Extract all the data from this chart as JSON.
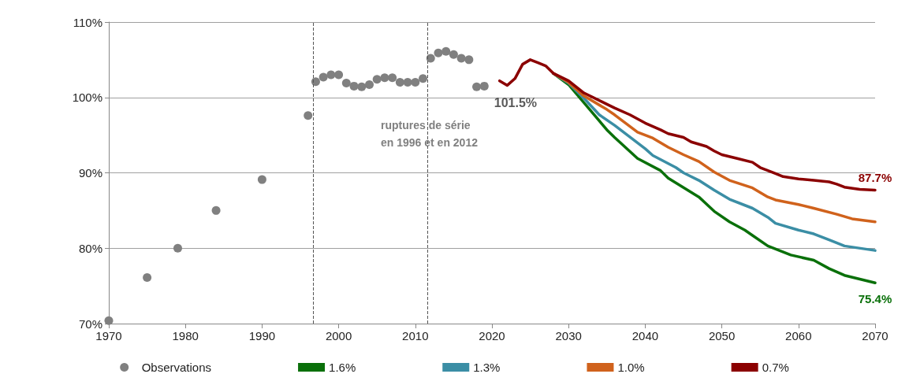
{
  "chart_data": {
    "type": "line",
    "xlim": [
      1970,
      2070
    ],
    "xticks": [
      1970,
      1980,
      1990,
      2000,
      2010,
      2020,
      2030,
      2040,
      2050,
      2060,
      2070
    ],
    "ylim": [
      70,
      110
    ],
    "yticks": [
      {
        "value": 70,
        "label": "70%"
      },
      {
        "value": 80,
        "label": "80%"
      },
      {
        "value": 90,
        "label": "90%"
      },
      {
        "value": 100,
        "label": "100%"
      },
      {
        "value": 110,
        "label": "110%"
      }
    ],
    "grid": "y",
    "legend": "bottom",
    "marker": "none",
    "line_style": "solid",
    "series": [
      {
        "name": "Observations",
        "type": "scatter",
        "marker": "circle",
        "color": "#808080",
        "x": [
          1970,
          1975,
          1979,
          1984,
          1990,
          1996,
          1997,
          1998,
          1999,
          2000,
          2001,
          2002,
          2003,
          2004,
          2005,
          2006,
          2007,
          2008,
          2009,
          2010,
          2011,
          2012,
          2013,
          2014,
          2015,
          2016,
          2017,
          2018,
          2019
        ],
        "values": [
          70.4,
          76.1,
          80.0,
          85.0,
          89.1,
          97.6,
          102.1,
          102.7,
          103.0,
          103.0,
          101.9,
          101.5,
          101.4,
          101.7,
          102.4,
          102.6,
          102.6,
          102.0,
          102.0,
          102.0,
          102.5,
          105.2,
          105.9,
          106.1,
          105.7,
          105.2,
          105.0,
          101.4,
          101.5
        ],
        "value_labels": [
          null,
          null,
          null,
          null,
          null,
          null,
          null,
          null,
          null,
          null,
          null,
          null,
          null,
          null,
          null,
          null,
          null,
          null,
          null,
          null,
          null,
          null,
          null,
          null,
          null,
          null,
          null,
          null,
          "101.5%"
        ]
      },
      {
        "name": "1.6%",
        "color": "#0a700a",
        "x": [
          2028,
          2030,
          2032,
          2035,
          2036,
          2039,
          2042,
          2043,
          2047,
          2049,
          2051,
          2053,
          2054,
          2056,
          2059,
          2062,
          2064,
          2066,
          2070
        ],
        "values": [
          103.2,
          101.7,
          99.3,
          95.7,
          94.7,
          91.9,
          90.3,
          89.3,
          86.8,
          84.9,
          83.5,
          82.4,
          81.7,
          80.3,
          79.1,
          78.4,
          77.3,
          76.4,
          75.4
        ],
        "value_labels": [
          null,
          null,
          null,
          null,
          null,
          null,
          null,
          null,
          null,
          null,
          null,
          null,
          null,
          null,
          null,
          null,
          null,
          null,
          "75.4%"
        ]
      },
      {
        "name": "1.3%",
        "color": "#3b8ea5",
        "x": [
          2028,
          2030,
          2032,
          2034,
          2036,
          2040,
          2041,
          2044,
          2045,
          2047,
          2049,
          2051,
          2054,
          2056,
          2057,
          2060,
          2062,
          2064,
          2066,
          2070
        ],
        "values": [
          103.2,
          101.9,
          99.9,
          97.7,
          96.3,
          93.2,
          92.3,
          90.7,
          90.0,
          89.0,
          87.7,
          86.5,
          85.3,
          84.1,
          83.3,
          82.4,
          81.9,
          81.1,
          80.3,
          79.7
        ]
      },
      {
        "name": "1.0%",
        "color": "#d0621c",
        "x": [
          2028,
          2030,
          2032,
          2035,
          2036,
          2039,
          2041,
          2043,
          2045,
          2047,
          2049,
          2051,
          2054,
          2056,
          2057,
          2060,
          2062,
          2065,
          2067,
          2070
        ],
        "values": [
          103.2,
          102.0,
          100.2,
          98.4,
          97.7,
          95.4,
          94.6,
          93.4,
          92.4,
          91.5,
          90.1,
          89.0,
          88.0,
          86.8,
          86.4,
          85.8,
          85.3,
          84.5,
          83.9,
          83.5
        ]
      },
      {
        "name": "0.7%",
        "color": "#8b0000",
        "x": [
          2021,
          2022,
          2023,
          2024,
          2025,
          2026,
          2027,
          2028,
          2030,
          2031,
          2032,
          2035,
          2036,
          2038,
          2040,
          2042,
          2043,
          2045,
          2046,
          2048,
          2049,
          2050,
          2052,
          2054,
          2055,
          2057,
          2058,
          2060,
          2062,
          2064,
          2065,
          2066,
          2068,
          2070
        ],
        "values": [
          102.2,
          101.6,
          102.5,
          104.4,
          105.0,
          104.6,
          104.2,
          103.2,
          102.2,
          101.4,
          100.6,
          99.1,
          98.6,
          97.7,
          96.6,
          95.7,
          95.2,
          94.7,
          94.1,
          93.5,
          92.9,
          92.4,
          91.9,
          91.4,
          90.7,
          89.9,
          89.5,
          89.2,
          89.0,
          88.8,
          88.5,
          88.1,
          87.8,
          87.7
        ],
        "value_labels": [
          null,
          null,
          null,
          null,
          null,
          null,
          null,
          null,
          null,
          null,
          null,
          null,
          null,
          null,
          null,
          null,
          null,
          null,
          null,
          null,
          null,
          null,
          null,
          null,
          null,
          null,
          null,
          null,
          null,
          null,
          null,
          null,
          null,
          "87.7%"
        ]
      }
    ],
    "ref_lines": [
      {
        "axis": "x",
        "value": 1996.7,
        "color": "#555555",
        "line_style": "dashed"
      },
      {
        "axis": "x",
        "value": 2011.6,
        "color": "#555555",
        "line_style": "dashed"
      }
    ],
    "annotations": [
      "ruptures de série\nen 1996 et en 2012"
    ]
  }
}
